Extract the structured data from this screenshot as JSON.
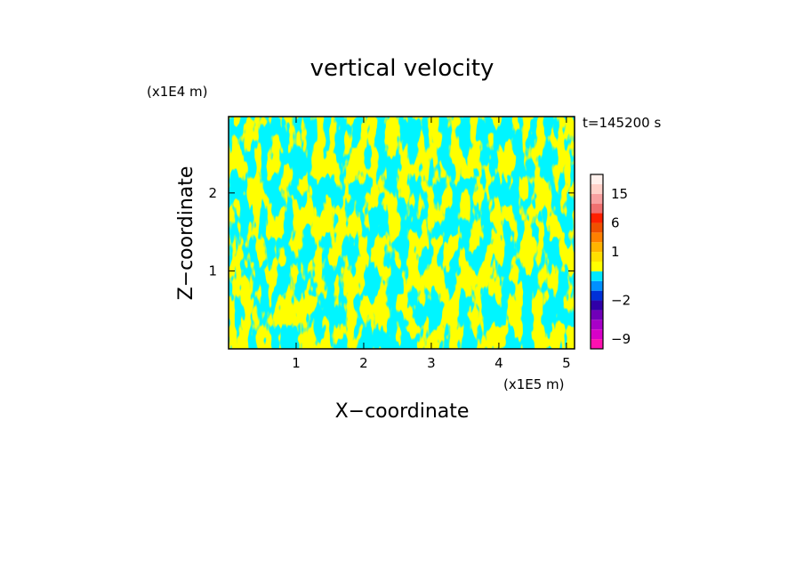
{
  "chart_data": {
    "type": "heatmap",
    "title": "vertical velocity",
    "xlabel": "X−coordinate",
    "ylabel": "Z−coordinate",
    "x_unit": "(x1E5 m)",
    "y_unit": "(x1E4 m)",
    "time_label": "t=145200 s",
    "xlim": [
      0,
      5.12
    ],
    "ylim": [
      0,
      2.98
    ],
    "x_ticks": [
      1,
      2,
      3,
      4,
      5
    ],
    "x_tick_labels": [
      "1",
      "2",
      "3",
      "4",
      "5"
    ],
    "y_ticks": [
      1,
      2
    ],
    "y_tick_labels": [
      "1",
      "2"
    ],
    "field_colors": {
      "positive": "#ffff00",
      "negative": "#00e8ff"
    },
    "colorbar": {
      "levels": [
        -12,
        -9,
        -6,
        -4,
        -3,
        -2,
        -1,
        -0.5,
        0,
        0.5,
        1,
        2,
        4,
        6,
        9,
        12,
        15,
        18,
        21
      ],
      "colors": [
        "#ff10b0",
        "#d800c8",
        "#a800c8",
        "#7000b8",
        "#3000a8",
        "#0030d8",
        "#0090ff",
        "#00e8ff",
        "#ffff00",
        "#ffe000",
        "#ffb400",
        "#ff8000",
        "#f05000",
        "#ff2000",
        "#f07070",
        "#f8a0a0",
        "#ffd0c8",
        "#fff0ec"
      ],
      "tick_values": [
        15,
        6,
        1,
        -2,
        -9
      ],
      "tick_labels": [
        "15",
        "6",
        "1",
        "−2",
        "−9"
      ]
    }
  }
}
